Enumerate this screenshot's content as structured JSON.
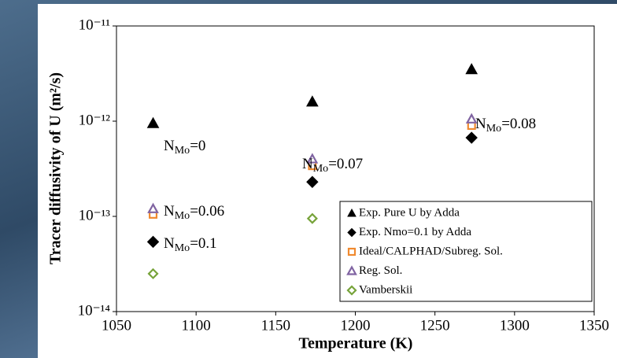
{
  "chart_data": {
    "type": "scatter",
    "xlabel": "Temperature (K)",
    "ylabel": "Tracer diffusivity of U (m²/s)",
    "xlim": [
      1050,
      1350
    ],
    "xticks": [
      1050,
      1100,
      1150,
      1200,
      1250,
      1300,
      1350
    ],
    "ylim": [
      1e-14,
      1e-11
    ],
    "log_y": true,
    "yticks": [
      {
        "value": 1e-14,
        "label": "10⁻¹⁴"
      },
      {
        "value": 1e-13,
        "label": "10⁻¹³"
      },
      {
        "value": 1e-12,
        "label": "10⁻¹²"
      },
      {
        "value": 1e-11,
        "label": "10⁻¹¹"
      }
    ],
    "legend_position": "lower right",
    "series": [
      {
        "name": "Exp. Pure U by Adda",
        "color": "#000000",
        "marker": "triangle",
        "filled": true,
        "x": [
          1073,
          1173,
          1273
        ],
        "values": [
          9.5e-13,
          1.6e-12,
          3.5e-12
        ]
      },
      {
        "name": "Exp. Nmo=0.1 by Adda",
        "color": "#000000",
        "marker": "diamond",
        "filled": true,
        "x": [
          1073,
          1173,
          1273
        ],
        "values": [
          5.4e-14,
          2.3e-13,
          6.7e-13
        ]
      },
      {
        "name": "Ideal/CALPHAD/Subreg. Sol.",
        "color": "#f08a30",
        "marker": "square",
        "filled": false,
        "x": [
          1073,
          1173,
          1273
        ],
        "values": [
          1.05e-13,
          3.4e-13,
          9e-13
        ]
      },
      {
        "name": "Reg. Sol.",
        "color": "#8064a2",
        "marker": "triangle",
        "filled": false,
        "x": [
          1073,
          1173,
          1273
        ],
        "values": [
          1.2e-13,
          4e-13,
          1.05e-12
        ]
      },
      {
        "name": "Vamberskii",
        "color": "#77a33a",
        "marker": "diamond",
        "filled": false,
        "x": [
          1073,
          1173
        ],
        "values": [
          2.5e-14,
          9.5e-14
        ]
      }
    ],
    "annotations": [
      {
        "base": "N",
        "sub": "Mo",
        "rest": "=0"
      },
      {
        "base": "N",
        "sub": "Mo",
        "rest": "=0.06"
      },
      {
        "base": "N",
        "sub": "Mo",
        "rest": "=0.1"
      },
      {
        "base": "N",
        "sub": "Mo",
        "rest": "=0.07"
      },
      {
        "base": "N",
        "sub": "Mo",
        "rest": "=0.08"
      }
    ]
  }
}
